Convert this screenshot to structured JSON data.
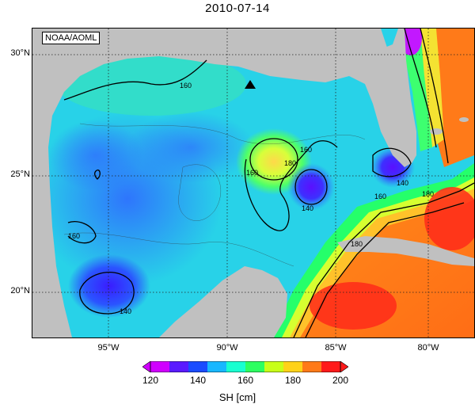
{
  "title": "2010-07-14",
  "credit": "NOAA/AOML",
  "latitude_labels": [
    "30°N",
    "25°N",
    "20°N"
  ],
  "longitude_labels": [
    "95°W",
    "90°W",
    "85°W",
    "80°W"
  ],
  "contour_labels": [
    "160",
    "160",
    "160",
    "140",
    "180",
    "140",
    "160",
    "180",
    "160",
    "140",
    "180"
  ],
  "colorbar": {
    "ticks": [
      "120",
      "140",
      "160",
      "180",
      "200"
    ],
    "label": "SH [cm]",
    "colors": [
      "#d000ff",
      "#5a1aff",
      "#1a4cff",
      "#19b7ff",
      "#19ffd0",
      "#2dff60",
      "#c8ff19",
      "#ffd219",
      "#ff7a19",
      "#ff1a1a"
    ]
  },
  "land_color": "#c0c0c0",
  "marker": "triangle-marker"
}
